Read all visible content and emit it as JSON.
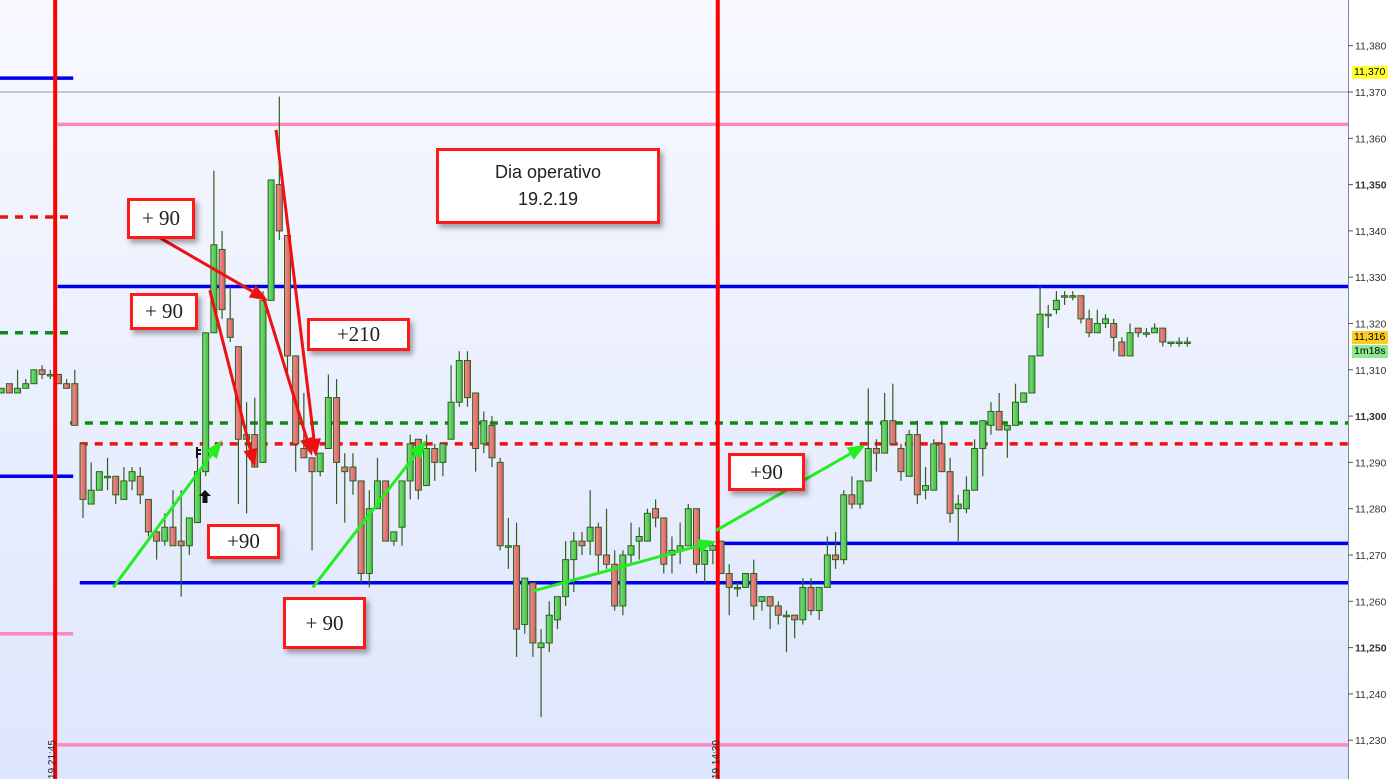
{
  "chart_data": {
    "type": "candlestick",
    "title": "",
    "y_axis": {
      "range": [
        11227,
        11383
      ],
      "ticks": [
        "11,230",
        "11,240",
        "11,250",
        "11,260",
        "11,270",
        "11,280",
        "11,290",
        "11,300",
        "11,310",
        "11,320",
        "11,330",
        "11,340",
        "11,350",
        "11,360",
        "11,370",
        "11,380"
      ],
      "tick_values": [
        11230,
        11240,
        11250,
        11260,
        11270,
        11280,
        11290,
        11300,
        11310,
        11320,
        11330,
        11340,
        11350,
        11360,
        11370,
        11380
      ],
      "bold_ticks": [
        11250,
        11300,
        11350
      ],
      "position": "right"
    },
    "grid": false,
    "session_separators": [
      {
        "label": "19 21:45",
        "index": 6.6
      },
      {
        "label": "19 14:30",
        "index": 87.6
      }
    ],
    "candles_ohlc": [
      [
        11305,
        11306,
        11305,
        11306
      ],
      [
        11307,
        11307,
        11305,
        11305
      ],
      [
        11305,
        11310,
        11305,
        11306
      ],
      [
        11306,
        11308,
        11306,
        11307
      ],
      [
        11307,
        11310,
        11307,
        11310
      ],
      [
        11310,
        11311,
        11308,
        11309
      ],
      [
        11309,
        11310,
        11308,
        11309
      ],
      [
        11309,
        11309,
        11307,
        11307
      ],
      [
        11307,
        11308,
        11306,
        11306
      ],
      [
        11307,
        11310,
        11298,
        11298
      ],
      [
        11294,
        11294,
        11278,
        11282
      ],
      [
        11281,
        11290,
        11281,
        11284
      ],
      [
        11284,
        11288,
        11284,
        11288
      ],
      [
        11287,
        11291,
        11284,
        11287
      ],
      [
        11287,
        11287,
        11281,
        11283
      ],
      [
        11282,
        11289,
        11282,
        11286
      ],
      [
        11286,
        11289,
        11284,
        11288
      ],
      [
        11287,
        11289,
        11281,
        11283
      ],
      [
        11282,
        11282,
        11274,
        11275
      ],
      [
        11275,
        11276,
        11269,
        11273
      ],
      [
        11273,
        11279,
        11272,
        11276
      ],
      [
        11276,
        11284,
        11272,
        11272
      ],
      [
        11273,
        11284,
        11261,
        11272
      ],
      [
        11272,
        11278,
        11270,
        11278
      ],
      [
        11277,
        11291,
        11277,
        11288
      ],
      [
        11288,
        11318,
        11287,
        11318
      ],
      [
        11318,
        11353,
        11318,
        11337
      ],
      [
        11336,
        11340,
        11321,
        11323
      ],
      [
        11321,
        11328,
        11316,
        11317
      ],
      [
        11315,
        11315,
        11281,
        11295
      ],
      [
        11295,
        11303,
        11279,
        11296
      ],
      [
        11296,
        11304,
        11289,
        11289
      ],
      [
        11290,
        11327,
        11290,
        11325
      ],
      [
        11325,
        11351,
        11325,
        11351
      ],
      [
        11350,
        11369,
        11338,
        11340
      ],
      [
        11339,
        11339,
        11309,
        11313
      ],
      [
        11313,
        11313,
        11288,
        11294
      ],
      [
        11293,
        11305,
        11291,
        11291
      ],
      [
        11291,
        11291,
        11271,
        11288
      ],
      [
        11288,
        11292,
        11287,
        11292
      ],
      [
        11293,
        11309,
        11293,
        11304
      ],
      [
        11304,
        11308,
        11281,
        11290
      ],
      [
        11289,
        11292,
        11277,
        11288
      ],
      [
        11289,
        11292,
        11283,
        11286
      ],
      [
        11286,
        11286,
        11264,
        11266
      ],
      [
        11266,
        11284,
        11263,
        11280
      ],
      [
        11280,
        11291,
        11280,
        11286
      ],
      [
        11286,
        11286,
        11273,
        11273
      ],
      [
        11273,
        11275,
        11272,
        11275
      ],
      [
        11276,
        11286,
        11272,
        11286
      ],
      [
        11286,
        11296,
        11282,
        11294
      ],
      [
        11295,
        11295,
        11282,
        11284
      ],
      [
        11285,
        11296,
        11285,
        11293
      ],
      [
        11293,
        11294,
        11286,
        11290
      ],
      [
        11290,
        11294,
        11287,
        11294
      ],
      [
        11295,
        11311,
        11295,
        11303
      ],
      [
        11303,
        11314,
        11302,
        11312
      ],
      [
        11312,
        11314,
        11302,
        11304
      ],
      [
        11305,
        11305,
        11288,
        11293
      ],
      [
        11294,
        11301,
        11292,
        11299
      ],
      [
        11298,
        11300,
        11289,
        11291
      ],
      [
        11290,
        11291,
        11271,
        11272
      ],
      [
        11272,
        11278,
        11267,
        11272
      ],
      [
        11272,
        11277,
        11248,
        11254
      ],
      [
        11255,
        11265,
        11253,
        11265
      ],
      [
        11264,
        11264,
        11248,
        11251
      ],
      [
        11250,
        11254,
        11235,
        11251
      ],
      [
        11251,
        11260,
        11249,
        11257
      ],
      [
        11256,
        11261,
        11254,
        11261
      ],
      [
        11261,
        11273,
        11259,
        11269
      ],
      [
        11269,
        11275,
        11262,
        11273
      ],
      [
        11273,
        11275,
        11270,
        11272
      ],
      [
        11273,
        11284,
        11270,
        11276
      ],
      [
        11276,
        11277,
        11266,
        11270
      ],
      [
        11270,
        11280,
        11267,
        11268
      ],
      [
        11268,
        11271,
        11258,
        11259
      ],
      [
        11259,
        11271,
        11257,
        11270
      ],
      [
        11270,
        11277,
        11268,
        11272
      ],
      [
        11273,
        11276,
        11269,
        11274
      ],
      [
        11273,
        11280,
        11273,
        11279
      ],
      [
        11280,
        11282,
        11276,
        11278
      ],
      [
        11278,
        11278,
        11266,
        11268
      ],
      [
        11270,
        11274,
        11266,
        11271
      ],
      [
        11271,
        11277,
        11268,
        11272
      ],
      [
        11272,
        11281,
        11272,
        11280
      ],
      [
        11280,
        11280,
        11266,
        11268
      ],
      [
        11268,
        11271,
        11264,
        11271
      ],
      [
        11271,
        11273,
        11268,
        11272
      ],
      [
        11273,
        11273,
        11266,
        11266
      ],
      [
        11266,
        11268,
        11257,
        11263
      ],
      [
        11263,
        11264,
        11261,
        11263
      ],
      [
        11263,
        11266,
        11263,
        11266
      ],
      [
        11266,
        11269,
        11256,
        11259
      ],
      [
        11260,
        11261,
        11258,
        11261
      ],
      [
        11261,
        11261,
        11254,
        11259
      ],
      [
        11259,
        11260,
        11255,
        11257
      ],
      [
        11257,
        11258,
        11249,
        11257
      ],
      [
        11257,
        11257,
        11252,
        11256
      ],
      [
        11256,
        11265,
        11255,
        11263
      ],
      [
        11263,
        11265,
        11257,
        11258
      ],
      [
        11258,
        11263,
        11256,
        11263
      ],
      [
        11263,
        11274,
        11263,
        11270
      ],
      [
        11270,
        11275,
        11267,
        11269
      ],
      [
        11269,
        11284,
        11268,
        11283
      ],
      [
        11283,
        11287,
        11280,
        11281
      ],
      [
        11281,
        11286,
        11280,
        11286
      ],
      [
        11286,
        11306,
        11286,
        11293
      ],
      [
        11293,
        11295,
        11288,
        11292
      ],
      [
        11292,
        11305,
        11292,
        11299
      ],
      [
        11299,
        11307,
        11294,
        11294
      ],
      [
        11293,
        11294,
        11286,
        11288
      ],
      [
        11287,
        11297,
        11287,
        11296
      ],
      [
        11296,
        11299,
        11281,
        11283
      ],
      [
        11284,
        11289,
        11282,
        11285
      ],
      [
        11284,
        11295,
        11284,
        11294
      ],
      [
        11294,
        11299,
        11288,
        11288
      ],
      [
        11288,
        11291,
        11277,
        11279
      ],
      [
        11280,
        11283,
        11273,
        11281
      ],
      [
        11280,
        11287,
        11279,
        11284
      ],
      [
        11284,
        11295,
        11284,
        11293
      ],
      [
        11293,
        11299,
        11287,
        11299
      ],
      [
        11298,
        11303,
        11296,
        11301
      ],
      [
        11301,
        11305,
        11297,
        11297
      ],
      [
        11297,
        11298,
        11291,
        11298
      ],
      [
        11298,
        11307,
        11298,
        11303
      ],
      [
        11303,
        11305,
        11303,
        11305
      ],
      [
        11305,
        11313,
        11305,
        11313
      ],
      [
        11313,
        11328,
        11313,
        11322
      ],
      [
        11322,
        11324,
        11319,
        11322
      ],
      [
        11323,
        11327,
        11322,
        11325
      ],
      [
        11326,
        11327,
        11324,
        11326
      ],
      [
        11326,
        11327,
        11325,
        11326
      ],
      [
        11326,
        11326,
        11320,
        11321
      ],
      [
        11321,
        11323,
        11317,
        11318
      ],
      [
        11318,
        11323,
        11318,
        11320
      ],
      [
        11320,
        11322,
        11319,
        11321
      ],
      [
        11320,
        11321,
        11314,
        11317
      ],
      [
        11316,
        11317,
        11313,
        11313
      ],
      [
        11313,
        11320,
        11313,
        11318
      ],
      [
        11319,
        11319,
        11317,
        11318
      ],
      [
        11318,
        11319,
        11317,
        11318
      ],
      [
        11318,
        11320,
        11318,
        11319
      ],
      [
        11319,
        11319,
        11315,
        11316
      ],
      [
        11316,
        11316,
        11315,
        11316
      ],
      [
        11316,
        11317,
        11315,
        11316
      ],
      [
        11316,
        11317,
        11315,
        11316
      ]
    ],
    "levels": [
      {
        "price": 11373,
        "color": "#0000ee",
        "style": "solid",
        "from": 0,
        "to": 8.8
      },
      {
        "price": 11370,
        "color": "#8c9aa8",
        "style": "thin",
        "from": 0,
        "to": "right"
      },
      {
        "price": 11363,
        "color": "#ff88bb",
        "style": "solid",
        "from": 6.9,
        "to": "right"
      },
      {
        "price": 11343,
        "color": "#ee1111",
        "style": "dotted",
        "from": 0,
        "to": 8.8
      },
      {
        "price": 11328,
        "color": "#0000ee",
        "style": "solid",
        "from": 6.9,
        "to": "right"
      },
      {
        "price": 11318,
        "color": "#118811",
        "style": "dotted",
        "from": 0,
        "to": 8.8
      },
      {
        "price": 11298.5,
        "color": "#118811",
        "style": "dotted",
        "from": 8.4,
        "to": "right"
      },
      {
        "price": 11294,
        "color": "#ee1111",
        "style": "dotted",
        "from": 9.6,
        "to": "right"
      },
      {
        "price": 11287,
        "color": "#0000ee",
        "style": "solid",
        "from": 0,
        "to": 8.8
      },
      {
        "price": 11272.5,
        "color": "#0000ee",
        "style": "solid",
        "from": 87.6,
        "to": "right"
      },
      {
        "price": 11264,
        "color": "#0000ee",
        "style": "solid",
        "from": 9.6,
        "to": "right"
      },
      {
        "price": 11253,
        "color": "#ff88bb",
        "style": "solid",
        "from": 0,
        "to": 8.8
      },
      {
        "price": 11229,
        "color": "#ff88bb",
        "style": "solid",
        "from": 6.9,
        "to": "right"
      }
    ],
    "arrows": [
      {
        "color": "#ee1111",
        "from": [
          19.4,
          11338.5
        ],
        "to": [
          32.6,
          11325
        ]
      },
      {
        "color": "#ee1111",
        "from": [
          25.5,
          11327.2
        ],
        "to": [
          31,
          11289
        ]
      },
      {
        "color": "#ee1111",
        "from": [
          32,
          11326
        ],
        "to": [
          38,
          11291.4
        ]
      },
      {
        "color": "#ee1111",
        "from": [
          33.6,
          11361.8
        ],
        "to": [
          38.5,
          11291.2
        ]
      },
      {
        "color": "#22ee22",
        "from": [
          13.7,
          11263
        ],
        "to": [
          27,
          11294.8
        ]
      },
      {
        "color": "#22ee22",
        "from": [
          38.1,
          11263
        ],
        "to": [
          52,
          11294.8
        ]
      },
      {
        "color": "#22ee22",
        "from": [
          65,
          11262.2
        ],
        "to": [
          87.4,
          11273
        ]
      },
      {
        "color": "#22ee22",
        "from": [
          87.4,
          11275.3
        ],
        "to": [
          105.7,
          11293.8
        ]
      }
    ],
    "colors": {
      "up": "#5ccf5c",
      "down": "#e57373",
      "wick": "#2f5f1f",
      "separator": "#ff0000"
    }
  },
  "annotations": {
    "title_line1": "Dia operativo",
    "title_line2": "19.2.19",
    "gain1": "+ 90",
    "gain2": "+ 90",
    "gain3": "+210",
    "gain4": "+90",
    "gain5": "+ 90",
    "gain6": "+90"
  },
  "price_labels": {
    "high": "11,370",
    "last": "11,316",
    "countdown": "1m18s",
    "high_color": "#ffff33",
    "last_color": "#ffcc22",
    "countdown_color": "#90e890"
  }
}
